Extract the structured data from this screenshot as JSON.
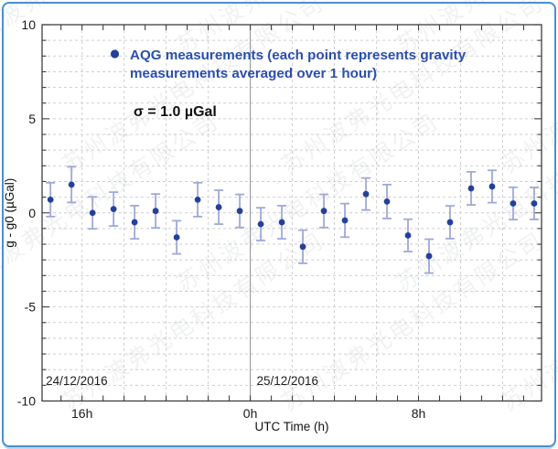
{
  "figure": {
    "background": "#ffffff",
    "frame_color": "#4a90cf"
  },
  "watermark": {
    "text": "苏州波弗光电科技有限公司",
    "color": "#8a95a0"
  },
  "chart_data": {
    "type": "scatter",
    "title": "",
    "xlabel": "UTC Time (h)",
    "ylabel": "g - g0 (µGal)",
    "ylim": [
      -10,
      10
    ],
    "x_range_hours_from_midnight": [
      -9.9,
      13.85
    ],
    "grid": true,
    "grid_x_step_hours": 2,
    "grid_y_divisions": 24,
    "x_minor_tick_step_hours": 1,
    "x_major_ticks": [
      {
        "t": -8,
        "label": "16h"
      },
      {
        "t": 0,
        "label": "0h"
      },
      {
        "t": 8,
        "label": "8h"
      }
    ],
    "y_major_ticks": [
      {
        "v": 10,
        "label": "10"
      },
      {
        "v": 5,
        "label": "5"
      },
      {
        "v": 0,
        "label": "0"
      },
      {
        "v": -5,
        "label": "-5"
      },
      {
        "v": -10,
        "label": "-10"
      }
    ],
    "date_separator_t": 0,
    "date_labels": [
      {
        "t": -9.72,
        "label": "24/12/2016"
      },
      {
        "t": 0.3,
        "label": "25/12/2016"
      }
    ],
    "legend": {
      "position": "top-left-inside",
      "line1": "AQG measurements (each point represents gravity",
      "line2": "measurements averaged over 1 hour)"
    },
    "annotation": "σ = 1.0 µGal",
    "series": [
      {
        "name": "AQG measurements",
        "x_hours_from_midnight": [
          -9.5,
          -8.5,
          -7.5,
          -6.5,
          -5.5,
          -4.5,
          -3.5,
          -2.5,
          -1.5,
          -0.5,
          0.5,
          1.5,
          2.5,
          3.5,
          4.5,
          5.5,
          6.5,
          7.5,
          8.5,
          9.5,
          10.5,
          11.5,
          12.5,
          13.5
        ],
        "y_ugal": [
          0.7,
          1.5,
          0.0,
          0.2,
          -0.5,
          0.1,
          -1.3,
          0.7,
          0.3,
          0.1,
          -0.6,
          -0.5,
          -1.8,
          0.1,
          -0.4,
          1.0,
          0.6,
          -1.2,
          -2.3,
          -0.5,
          1.3,
          1.4,
          0.5,
          0.5
        ],
        "yerr_ugal": [
          0.9,
          0.95,
          0.85,
          0.9,
          0.88,
          0.9,
          0.88,
          0.9,
          0.9,
          0.88,
          0.87,
          0.88,
          0.88,
          0.88,
          0.89,
          0.85,
          0.9,
          0.86,
          0.9,
          0.87,
          0.88,
          0.86,
          0.86,
          0.85
        ]
      }
    ],
    "colors": {
      "marker": "#24409a",
      "errorbar": "#a0a8d8",
      "legend_text": "#2b4fae",
      "grid": "#cfcfcf",
      "date_separator": "#9a9a9a",
      "axis": "#3f3f3f"
    }
  }
}
